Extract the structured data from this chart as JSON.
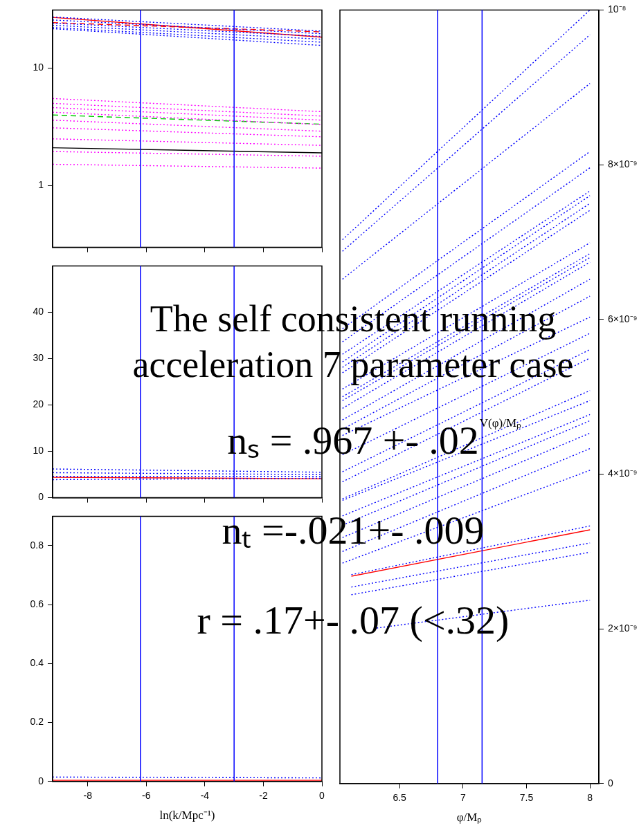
{
  "chart_data": [
    {
      "type": "line",
      "x": [
        -9.2,
        0
      ],
      "xlim": [
        -9.2,
        0
      ],
      "xticks": [
        -8,
        -6,
        -4,
        -2,
        0
      ],
      "ylim": [
        0.3,
        31
      ],
      "yticks": [
        1,
        10
      ],
      "log": "y",
      "tick_labels": "y",
      "ref_lines": [
        {
          "axis": "x",
          "value": -6.2,
          "color": "#0000ff"
        },
        {
          "axis": "x",
          "value": -3.0,
          "color": "#0000ff"
        }
      ],
      "series": [
        {
          "color": "#0000ff",
          "line_style": "dotted",
          "values": [
            27,
            20.5
          ]
        },
        {
          "color": "#0000ff",
          "line_style": "dotted",
          "values": [
            25.5,
            19.5
          ]
        },
        {
          "color": "#0000ff",
          "line_style": "dotted",
          "values": [
            24,
            18.5
          ]
        },
        {
          "color": "#0000ff",
          "line_style": "dotted",
          "values": [
            23,
            17.5
          ]
        },
        {
          "color": "#0000ff",
          "line_style": "dotted",
          "values": [
            22,
            16.5
          ]
        },
        {
          "color": "#0000ff",
          "line_style": "dotted",
          "values": [
            21.5,
            15.5
          ]
        },
        {
          "color": "#ff0000",
          "line_style": "solid",
          "values": [
            26.8,
            18.2
          ]
        },
        {
          "color": "#ff0000",
          "line_style": "dashed",
          "values": [
            24.2,
            20.2
          ]
        },
        {
          "color": "#ff00ff",
          "line_style": "dotted",
          "values": [
            5.5,
            4.25
          ]
        },
        {
          "color": "#ff00ff",
          "line_style": "dotted",
          "values": [
            5,
            3.9
          ]
        },
        {
          "color": "#ff00ff",
          "line_style": "dotted",
          "values": [
            4.6,
            3.6
          ]
        },
        {
          "color": "#ff00ff",
          "line_style": "dotted",
          "values": [
            4.2,
            3.3
          ]
        },
        {
          "color": "#ff00ff",
          "line_style": "dotted",
          "values": [
            3.6,
            2.9
          ]
        },
        {
          "color": "#ff00ff",
          "line_style": "dotted",
          "values": [
            3.1,
            2.6
          ]
        },
        {
          "color": "#ff00ff",
          "line_style": "dotted",
          "values": [
            2.5,
            2.2
          ]
        },
        {
          "color": "#ff00ff",
          "line_style": "dotted",
          "values": [
            1.95,
            1.78
          ]
        },
        {
          "color": "#ff00ff",
          "line_style": "dotted",
          "values": [
            1.52,
            1.41
          ]
        },
        {
          "color": "#00cc00",
          "line_style": "dashed",
          "values": [
            3.98,
            3.33
          ]
        },
        {
          "color": "#000000",
          "line_style": "solid",
          "values": [
            2.1,
            1.9
          ]
        }
      ]
    },
    {
      "type": "line",
      "x": [
        -9.2,
        0
      ],
      "xlim": [
        -9.2,
        0
      ],
      "xticks": [
        -8,
        -6,
        -4,
        -2,
        0
      ],
      "ylim": [
        0,
        50
      ],
      "yticks": [
        0,
        10,
        20,
        30,
        40
      ],
      "tick_labels": "y",
      "ref_lines": [
        {
          "axis": "x",
          "value": -6.2,
          "color": "#0000ff"
        },
        {
          "axis": "x",
          "value": -3.0,
          "color": "#0000ff"
        }
      ],
      "series": [
        {
          "color": "#0000ff",
          "line_style": "dotted",
          "values": [
            6.2,
            5.5
          ]
        },
        {
          "color": "#0000ff",
          "line_style": "dotted",
          "values": [
            5.4,
            5.0
          ]
        },
        {
          "color": "#0000ff",
          "line_style": "dotted",
          "values": [
            4.6,
            4.6
          ]
        },
        {
          "color": "#0000ff",
          "line_style": "dotted",
          "values": [
            3.9,
            4.2
          ]
        },
        {
          "color": "#ff0000",
          "line_style": "solid",
          "values": [
            4.4,
            4.1
          ]
        }
      ]
    },
    {
      "type": "line",
      "x": [
        -9.2,
        0
      ],
      "xlim": [
        -9.2,
        0
      ],
      "xticks": [
        -8,
        -6,
        -4,
        -2,
        0
      ],
      "ylim": [
        0,
        0.9
      ],
      "yticks": [
        0,
        0.2,
        0.4,
        0.6,
        0.8
      ],
      "xlabel": "ln(k/Mpc⁻¹)",
      "ref_lines": [
        {
          "axis": "x",
          "value": -6.2,
          "color": "#0000ff"
        },
        {
          "axis": "x",
          "value": -3.0,
          "color": "#0000ff"
        }
      ],
      "series": [
        {
          "color": "#0000ff",
          "line_style": "dotted",
          "values": [
            0.015,
            0.012
          ]
        },
        {
          "color": "#ff0000",
          "line_style": "solid",
          "values": [
            0.004,
            0.004
          ]
        }
      ]
    },
    {
      "type": "line",
      "x": [
        6.05,
        8.0
      ],
      "xlim": [
        6.03,
        8.07
      ],
      "xticks": [
        6.5,
        7,
        7.5,
        8
      ],
      "ylim": [
        0,
        1e-08
      ],
      "yticks": [
        0,
        {
          "value": 2e-09,
          "label": "2×10⁻⁹"
        },
        {
          "value": 4e-09,
          "label": "4×10⁻⁹"
        },
        {
          "value": 6e-09,
          "label": "6×10⁻⁹"
        },
        {
          "value": 8e-09,
          "label": "8×10⁻⁹"
        },
        {
          "value": 1e-08,
          "label": "10⁻⁸"
        }
      ],
      "xlabel": "φ/Mₚ",
      "ylabel": "V(φ)/Mₚ",
      "ref_lines": [
        {
          "axis": "x",
          "value": 6.8,
          "color": "#0000ff"
        },
        {
          "axis": "x",
          "value": 7.15,
          "color": "#0000ff"
        }
      ],
      "series": [
        {
          "color": "#0000ff",
          "line_style": "dotted",
          "values": [
            7.03e-09,
            1e-08
          ]
        },
        {
          "color": "#0000ff",
          "line_style": "dotted",
          "values": [
            6.88e-09,
            9.68e-09
          ]
        },
        {
          "color": "#0000ff",
          "line_style": "dotted",
          "values": [
            6.52e-09,
            9.05e-09
          ]
        },
        {
          "color": "#0000ff",
          "line_style": "dotted",
          "values": [
            5.88e-09,
            8.17e-09
          ]
        },
        {
          "color": "#0000ff",
          "line_style": "dotted",
          "values": [
            5.71e-09,
            7.96e-09
          ]
        },
        {
          "color": "#0000ff",
          "line_style": "dotted",
          "values": [
            5.55e-09,
            7.66e-09
          ]
        },
        {
          "color": "#0000ff",
          "line_style": "dotted",
          "values": [
            5.45e-09,
            7.6e-09
          ]
        },
        {
          "color": "#0000ff",
          "line_style": "dotted",
          "values": [
            5.38e-09,
            7.5e-09
          ]
        },
        {
          "color": "#0000ff",
          "line_style": "dotted",
          "values": [
            5.31e-09,
            7.41e-09
          ]
        },
        {
          "color": "#0000ff",
          "line_style": "dotted",
          "values": [
            5.1e-09,
            6.99e-09
          ]
        },
        {
          "color": "#0000ff",
          "line_style": "dotted",
          "values": [
            5e-09,
            6.85e-09
          ]
        },
        {
          "color": "#0000ff",
          "line_style": "dotted",
          "values": [
            4.95e-09,
            6.8e-09
          ]
        },
        {
          "color": "#0000ff",
          "line_style": "dotted",
          "values": [
            4.85e-09,
            6.74e-09
          ]
        },
        {
          "color": "#0000ff",
          "line_style": "dotted",
          "values": [
            4.7e-09,
            6.52e-09
          ]
        },
        {
          "color": "#0000ff",
          "line_style": "dotted",
          "values": [
            4.58e-09,
            6.3e-09
          ]
        },
        {
          "color": "#0000ff",
          "line_style": "dotted",
          "values": [
            4.5e-09,
            6.03e-09
          ]
        },
        {
          "color": "#0000ff",
          "line_style": "dotted",
          "values": [
            4.25e-09,
            5.82e-09
          ]
        },
        {
          "color": "#0000ff",
          "line_style": "dotted",
          "values": [
            4.03e-09,
            5.61e-09
          ]
        },
        {
          "color": "#0000ff",
          "line_style": "dotted",
          "values": [
            3.9e-09,
            5.5e-09
          ]
        },
        {
          "color": "#0000ff",
          "line_style": "dotted",
          "values": [
            3.68e-09,
            5.08e-09
          ]
        },
        {
          "color": "#0000ff",
          "line_style": "dotted",
          "values": [
            3.66e-09,
            4.95e-09
          ]
        },
        {
          "color": "#0000ff",
          "line_style": "dotted",
          "values": [
            3.46e-09,
            4.77e-09
          ]
        },
        {
          "color": "#0000ff",
          "line_style": "dotted",
          "values": [
            3.34e-09,
            4.69e-09
          ]
        },
        {
          "color": "#0000ff",
          "line_style": "dotted",
          "values": [
            3.18e-09,
            4.53e-09
          ]
        },
        {
          "color": "#0000ff",
          "line_style": "dotted",
          "values": [
            3e-09,
            4.33e-09
          ]
        },
        {
          "color": "#0000ff",
          "line_style": "dotted",
          "values": [
            2.85e-09,
            4.05e-09
          ]
        },
        {
          "color": "#0000ff",
          "line_style": "dotted",
          "x": [
            6.12,
            8.0
          ],
          "values": [
            2.7e-09,
            3.33e-09
          ]
        },
        {
          "color": "#0000ff",
          "line_style": "dotted",
          "x": [
            6.12,
            8.0
          ],
          "values": [
            2.54e-09,
            3.11e-09
          ]
        },
        {
          "color": "#0000ff",
          "line_style": "dotted",
          "x": [
            6.12,
            8.0
          ],
          "values": [
            2.44e-09,
            2.99e-09
          ]
        },
        {
          "color": "#0000ff",
          "line_style": "dotted",
          "x": [
            6.32,
            8.0
          ],
          "values": [
            2.01e-09,
            2.37e-09
          ]
        },
        {
          "color": "#ff0000",
          "line_style": "solid",
          "x": [
            6.12,
            8.0
          ],
          "values": [
            2.68e-09,
            3.28e-09
          ]
        }
      ]
    },
    {
      "type": "other",
      "title": "The self consistent running acceleration 7 parameter case",
      "annotations": [
        "nₛ = .967 +- .02",
        "nₜ =-.021+- .009",
        "r = .17+- .07 (<.32)"
      ]
    }
  ]
}
